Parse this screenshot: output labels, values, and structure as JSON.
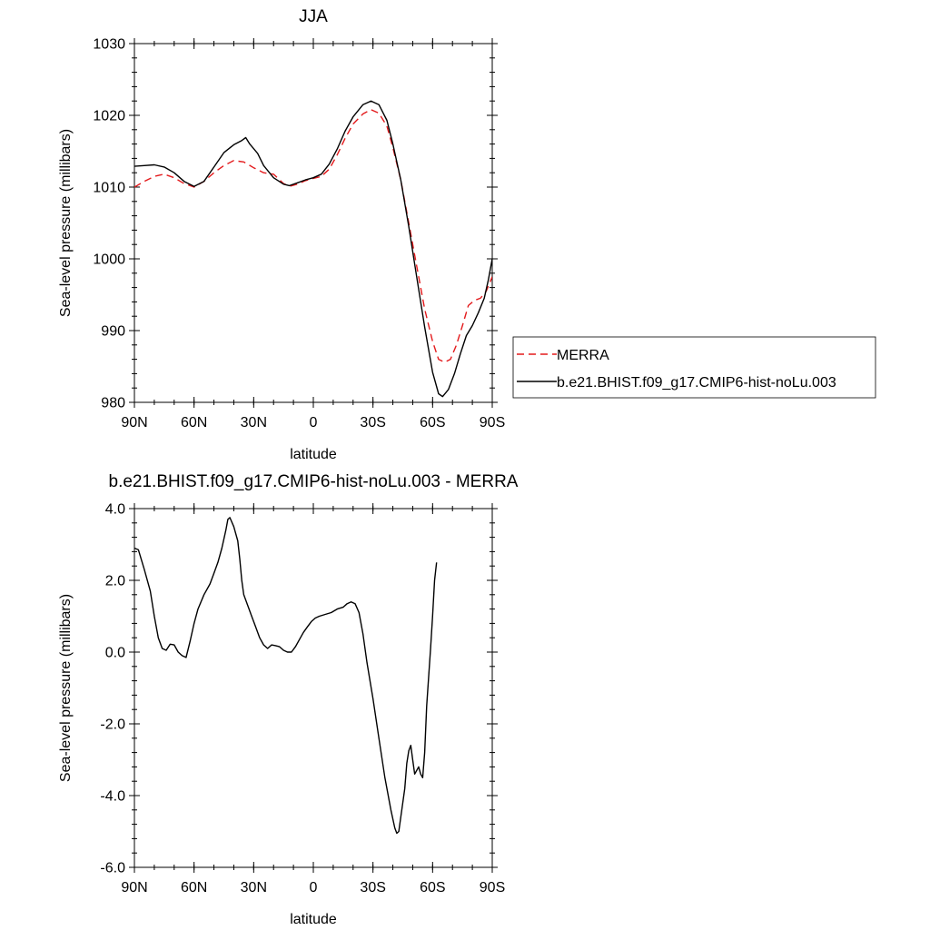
{
  "chart_data": [
    {
      "type": "line",
      "title": "JJA",
      "xlabel": "latitude",
      "ylabel": "Sea-level pressure (millibars)",
      "xlim": [
        -90,
        90
      ],
      "ylim": [
        980,
        1030
      ],
      "x_ticks": [
        {
          "value": -90,
          "label": "90N"
        },
        {
          "value": -60,
          "label": "60N"
        },
        {
          "value": -30,
          "label": "30N"
        },
        {
          "value": 0,
          "label": "0"
        },
        {
          "value": 30,
          "label": "30S"
        },
        {
          "value": 60,
          "label": "60S"
        },
        {
          "value": 90,
          "label": "90S"
        }
      ],
      "y_ticks": [
        {
          "value": 980,
          "label": "980"
        },
        {
          "value": 990,
          "label": "990"
        },
        {
          "value": 1000,
          "label": "1000"
        },
        {
          "value": 1010,
          "label": "1010"
        },
        {
          "value": 1020,
          "label": "1020"
        },
        {
          "value": 1030,
          "label": "1030"
        }
      ],
      "legend_position": "right",
      "series": [
        {
          "name": "MERRA",
          "color": "#e31a1c",
          "style": "dashed",
          "points": [
            [
              -90,
              1010
            ],
            [
              -85,
              1010.8
            ],
            [
              -80,
              1011.5
            ],
            [
              -75,
              1011.8
            ],
            [
              -70,
              1011.3
            ],
            [
              -65,
              1010.5
            ],
            [
              -60,
              1010
            ],
            [
              -55,
              1010.8
            ],
            [
              -50,
              1012
            ],
            [
              -45,
              1013
            ],
            [
              -40,
              1013.7
            ],
            [
              -35,
              1013.5
            ],
            [
              -30,
              1012.7
            ],
            [
              -25,
              1012
            ],
            [
              -20,
              1011.8
            ],
            [
              -15,
              1010.5
            ],
            [
              -12,
              1010.1
            ],
            [
              -8,
              1010.4
            ],
            [
              -4,
              1010.9
            ],
            [
              0,
              1011.2
            ],
            [
              4,
              1011.5
            ],
            [
              8,
              1012.5
            ],
            [
              12,
              1014.5
            ],
            [
              16,
              1016.8
            ],
            [
              20,
              1018.8
            ],
            [
              25,
              1020.2
            ],
            [
              29,
              1020.8
            ],
            [
              33,
              1020.3
            ],
            [
              37,
              1018.5
            ],
            [
              40,
              1015.5
            ],
            [
              44,
              1011
            ],
            [
              48,
              1005
            ],
            [
              52,
              999
            ],
            [
              56,
              993
            ],
            [
              60,
              988.5
            ],
            [
              63,
              986
            ],
            [
              66,
              985.6
            ],
            [
              69,
              986
            ],
            [
              72,
              988
            ],
            [
              75,
              990.7
            ],
            [
              78,
              993.5
            ],
            [
              81,
              994.2
            ],
            [
              84,
              994.5
            ],
            [
              87,
              995.5
            ],
            [
              90,
              997.5
            ]
          ]
        },
        {
          "name": "b.e21.BHIST.f09_g17.CMIP6-hist-noLu.003",
          "color": "#000000",
          "style": "solid",
          "points": [
            [
              -90,
              1012.9
            ],
            [
              -85,
              1013
            ],
            [
              -80,
              1013.1
            ],
            [
              -75,
              1012.8
            ],
            [
              -70,
              1012
            ],
            [
              -65,
              1010.8
            ],
            [
              -60,
              1010.1
            ],
            [
              -55,
              1010.8
            ],
            [
              -50,
              1012.8
            ],
            [
              -45,
              1014.8
            ],
            [
              -40,
              1015.9
            ],
            [
              -36,
              1016.5
            ],
            [
              -34,
              1016.9
            ],
            [
              -32,
              1016
            ],
            [
              -28,
              1014.7
            ],
            [
              -25,
              1013
            ],
            [
              -20,
              1011.3
            ],
            [
              -15,
              1010.4
            ],
            [
              -12,
              1010.2
            ],
            [
              -8,
              1010.6
            ],
            [
              -4,
              1011
            ],
            [
              0,
              1011.3
            ],
            [
              4,
              1011.8
            ],
            [
              8,
              1013.2
            ],
            [
              12,
              1015.3
            ],
            [
              16,
              1017.8
            ],
            [
              20,
              1019.8
            ],
            [
              25,
              1021.5
            ],
            [
              29,
              1022
            ],
            [
              33,
              1021.5
            ],
            [
              37,
              1019.3
            ],
            [
              40,
              1016
            ],
            [
              44,
              1011
            ],
            [
              48,
              1004.5
            ],
            [
              52,
              997.5
            ],
            [
              56,
              990.5
            ],
            [
              60,
              984.2
            ],
            [
              63,
              981.2
            ],
            [
              65,
              980.8
            ],
            [
              68,
              981.8
            ],
            [
              71,
              984
            ],
            [
              74,
              986.8
            ],
            [
              77,
              989.3
            ],
            [
              80,
              990.7
            ],
            [
              83,
              992.5
            ],
            [
              86,
              994.5
            ],
            [
              88,
              997
            ],
            [
              90,
              1000
            ]
          ]
        }
      ]
    },
    {
      "type": "line",
      "title": "b.e21.BHIST.f09_g17.CMIP6-hist-noLu.003 - MERRA",
      "xlabel": "latitude",
      "ylabel": "Sea-level pressure (millibars)",
      "xlim": [
        -90,
        90
      ],
      "ylim": [
        -6,
        4
      ],
      "x_ticks": [
        {
          "value": -90,
          "label": "90N"
        },
        {
          "value": -60,
          "label": "60N"
        },
        {
          "value": -30,
          "label": "30N"
        },
        {
          "value": 0,
          "label": "0"
        },
        {
          "value": 30,
          "label": "30S"
        },
        {
          "value": 60,
          "label": "60S"
        },
        {
          "value": 90,
          "label": "90S"
        }
      ],
      "y_ticks": [
        {
          "value": -6,
          "label": "-6.0"
        },
        {
          "value": -4,
          "label": "-4.0"
        },
        {
          "value": -2,
          "label": "-2.0"
        },
        {
          "value": 0,
          "label": "0.0"
        },
        {
          "value": 2,
          "label": "2.0"
        },
        {
          "value": 4,
          "label": "4.0"
        }
      ],
      "series": [
        {
          "color": "#000000",
          "style": "solid",
          "points": [
            [
              -90,
              2.9
            ],
            [
              -88,
              2.85
            ],
            [
              -85,
              2.3
            ],
            [
              -82,
              1.7
            ],
            [
              -80,
              1
            ],
            [
              -78,
              0.4
            ],
            [
              -76,
              0.1
            ],
            [
              -74,
              0.05
            ],
            [
              -72,
              0.22
            ],
            [
              -70,
              0.2
            ],
            [
              -68,
              0
            ],
            [
              -66,
              -0.1
            ],
            [
              -64,
              -0.15
            ],
            [
              -62,
              0.3
            ],
            [
              -60,
              0.8
            ],
            [
              -58,
              1.2
            ],
            [
              -55,
              1.6
            ],
            [
              -52,
              1.9
            ],
            [
              -50,
              2.2
            ],
            [
              -48,
              2.5
            ],
            [
              -46,
              2.9
            ],
            [
              -44,
              3.4
            ],
            [
              -43,
              3.7
            ],
            [
              -42,
              3.75
            ],
            [
              -40,
              3.5
            ],
            [
              -38,
              3.1
            ],
            [
              -37,
              2.6
            ],
            [
              -36,
              2
            ],
            [
              -35,
              1.6
            ],
            [
              -33,
              1.3
            ],
            [
              -31,
              1
            ],
            [
              -29,
              0.7
            ],
            [
              -27,
              0.4
            ],
            [
              -25,
              0.2
            ],
            [
              -23,
              0.1
            ],
            [
              -21,
              0.2
            ],
            [
              -19,
              0.18
            ],
            [
              -17,
              0.15
            ],
            [
              -15,
              0.05
            ],
            [
              -13,
              0
            ],
            [
              -11,
              0
            ],
            [
              -9,
              0.15
            ],
            [
              -7,
              0.35
            ],
            [
              -5,
              0.55
            ],
            [
              -3,
              0.7
            ],
            [
              -1,
              0.85
            ],
            [
              1,
              0.95
            ],
            [
              3,
              1
            ],
            [
              6,
              1.05
            ],
            [
              9,
              1.1
            ],
            [
              12,
              1.2
            ],
            [
              15,
              1.25
            ],
            [
              17,
              1.35
            ],
            [
              19,
              1.4
            ],
            [
              21,
              1.35
            ],
            [
              23,
              1.1
            ],
            [
              25,
              0.5
            ],
            [
              27,
              -0.3
            ],
            [
              30,
              -1.3
            ],
            [
              33,
              -2.4
            ],
            [
              36,
              -3.5
            ],
            [
              39,
              -4.4
            ],
            [
              41,
              -4.9
            ],
            [
              42,
              -5.05
            ],
            [
              43,
              -5
            ],
            [
              44,
              -4.6
            ],
            [
              46,
              -3.8
            ],
            [
              47,
              -3.1
            ],
            [
              48,
              -2.75
            ],
            [
              49,
              -2.6
            ],
            [
              50,
              -3
            ],
            [
              51,
              -3.4
            ],
            [
              53,
              -3.2
            ],
            [
              54,
              -3.4
            ],
            [
              55,
              -3.5
            ],
            [
              56,
              -2.8
            ],
            [
              57,
              -1.5
            ],
            [
              59,
              0.1
            ],
            [
              60,
              1
            ],
            [
              61,
              2
            ],
            [
              62,
              2.5
            ]
          ]
        }
      ]
    }
  ]
}
